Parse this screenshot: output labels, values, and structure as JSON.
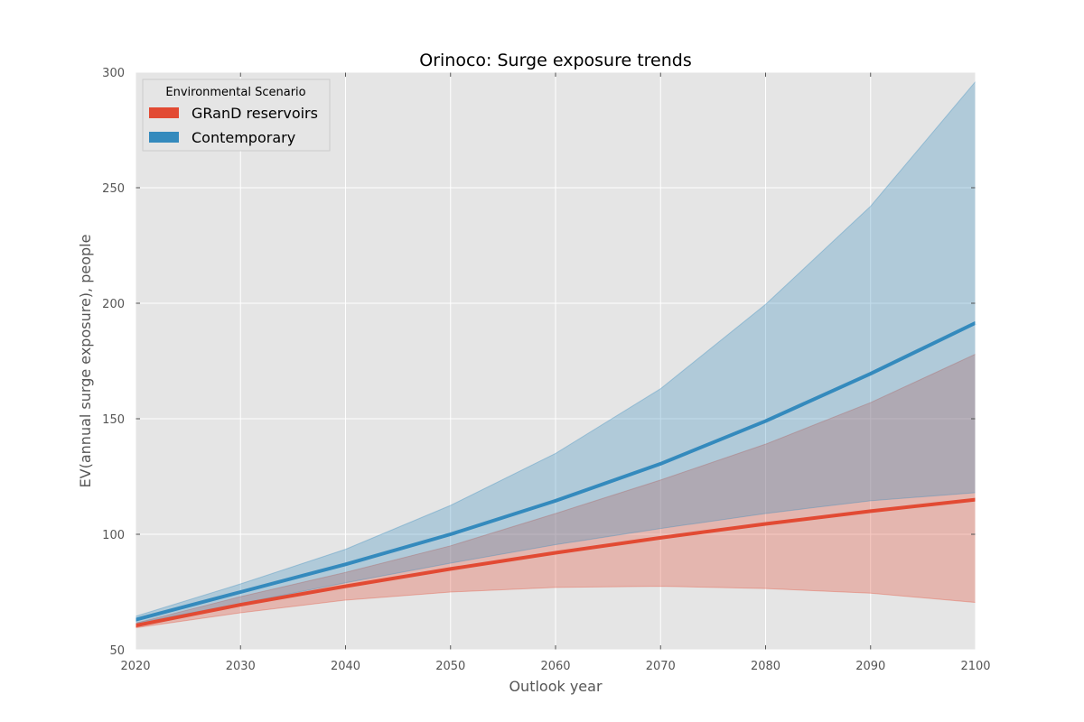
{
  "chart_data": {
    "type": "line",
    "title": "Orinoco: Surge exposure trends",
    "xlabel": "Outlook year",
    "ylabel": "EV(annual surge exposure), people",
    "xlim": [
      2020,
      2100
    ],
    "ylim": [
      50,
      300
    ],
    "xticks": [
      "2020",
      "2030",
      "2040",
      "2050",
      "2060",
      "2070",
      "2080",
      "2090",
      "2100"
    ],
    "yticks": [
      "50",
      "100",
      "150",
      "200",
      "250",
      "300"
    ],
    "grid": true,
    "legend": {
      "title": "Environmental Scenario",
      "placement": "top-left"
    },
    "x": [
      2020,
      2030,
      2040,
      2050,
      2060,
      2070,
      2080,
      2090,
      2100
    ],
    "series": [
      {
        "name": "GRanD reservoirs",
        "color": "#E24A33",
        "values": [
          60.5,
          69.5,
          77.5,
          85,
          92,
          98.5,
          104.5,
          110,
          115
        ],
        "lower": [
          59.5,
          66,
          71.5,
          75,
          77,
          77.5,
          76.5,
          74.5,
          70.5
        ],
        "upper": [
          61.5,
          73,
          83.5,
          95,
          109,
          123.5,
          139,
          157,
          178
        ]
      },
      {
        "name": "Contemporary",
        "color": "#348ABD",
        "values": [
          63,
          75,
          87,
          100,
          114.5,
          130.5,
          149,
          169.5,
          191.5
        ],
        "lower": [
          61.5,
          70,
          79,
          87.5,
          95.5,
          102.5,
          109,
          114.5,
          118
        ],
        "upper": [
          64.5,
          78.5,
          93.5,
          112.5,
          135,
          163,
          199.5,
          242,
          296
        ]
      }
    ]
  }
}
